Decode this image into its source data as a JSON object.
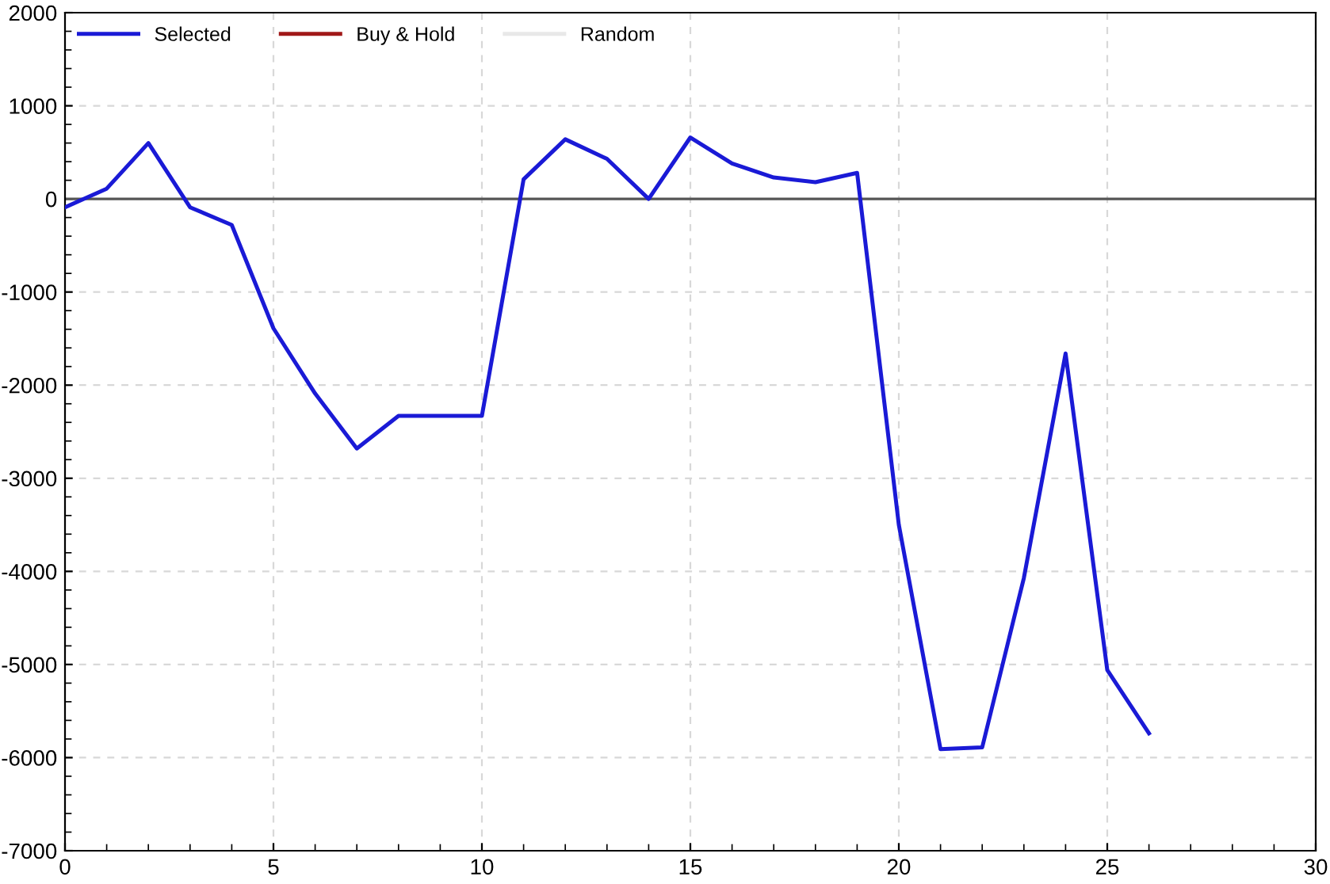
{
  "chart_data": {
    "type": "line",
    "x": [
      0,
      1,
      2,
      3,
      4,
      5,
      6,
      7,
      8,
      9,
      10,
      11,
      12,
      13,
      14,
      15,
      16,
      17,
      18,
      19,
      20,
      21,
      22,
      23,
      24,
      25,
      26
    ],
    "series": [
      {
        "name": "Selected",
        "color": "#1a1ad6",
        "values": [
          -90,
          110,
          600,
          -90,
          -280,
          -1390,
          -2090,
          -2680,
          -2330,
          -2330,
          -2330,
          210,
          640,
          430,
          0,
          660,
          380,
          230,
          180,
          280,
          -3500,
          -5910,
          -5890,
          -4070,
          -1660,
          -5060,
          -5740
        ]
      },
      {
        "name": "Buy & Hold",
        "color": "#a01818",
        "values": [
          null,
          null,
          null,
          null,
          null,
          null,
          null,
          null,
          null,
          null,
          null,
          null,
          null,
          null,
          null,
          null,
          null,
          null,
          null,
          null,
          null,
          null,
          null,
          null,
          null,
          null,
          null
        ]
      },
      {
        "name": "Random",
        "color": "#e8e8e8",
        "values": [
          null,
          null,
          null,
          null,
          null,
          null,
          null,
          null,
          null,
          null,
          null,
          null,
          null,
          null,
          null,
          null,
          null,
          null,
          null,
          null,
          null,
          null,
          null,
          null,
          null,
          null,
          null
        ]
      }
    ],
    "xlim": [
      0,
      30
    ],
    "xticks": [
      0,
      5,
      10,
      15,
      20,
      25,
      30
    ],
    "ylim": [
      -7000,
      2000
    ],
    "yticks": [
      -7000,
      -6000,
      -5000,
      -4000,
      -3000,
      -2000,
      -1000,
      0,
      1000,
      2000
    ],
    "ref_lines": [
      {
        "axis": "y",
        "value": 0,
        "color": "#555555"
      }
    ],
    "grid": true,
    "legend": "top left",
    "line_style": "solid",
    "marker": "none"
  }
}
